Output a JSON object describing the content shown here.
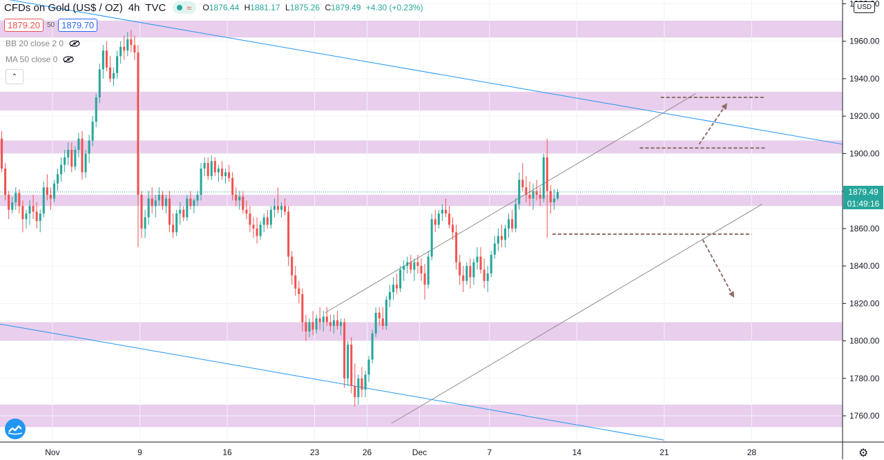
{
  "header": {
    "title": "CFDs on Gold (US$ / OZ)",
    "interval": "4h",
    "source": "TVC",
    "status_glyph": "≈",
    "ohlc": {
      "o": "1876.44",
      "h": "1881.17",
      "l": "1875.26",
      "c": "1879.49",
      "change": "+4.30 (+0.23%)"
    },
    "ohlc_keys": {
      "o": "O",
      "h": "H",
      "l": "L",
      "c": "C"
    }
  },
  "trade": {
    "sell": "1879.20",
    "spread": "50",
    "buy": "1879.70"
  },
  "indicators": [
    {
      "label": "BB 20 close 2 0"
    },
    {
      "label": "MA 50 close 0"
    }
  ],
  "collapse_glyph": "⌃",
  "currency_label": "USD",
  "price_badge": "1879.49",
  "countdown_badge": "01:49:16",
  "colors": {
    "up": "#26a69a",
    "down": "#ef5350",
    "zone": "#e1bee7",
    "trend": "#2196f3",
    "channel": "#8d8d8d",
    "target": "#8d6e63",
    "axis_text": "#131722"
  },
  "chart_data": {
    "type": "candlestick",
    "y_axis": {
      "ticks": [
        1760,
        1780,
        1800,
        1820,
        1840,
        1860,
        1880,
        1900,
        1920,
        1940,
        1960,
        1980
      ],
      "tick_labels": [
        "1760.00",
        "1780.00",
        "1800.00",
        "1820.00",
        "1840.00",
        "1860.00",
        "1880.00",
        "1900.00",
        "1920.00",
        "1940.00",
        "1960.00",
        "1980.00"
      ],
      "range": [
        1746,
        1982
      ]
    },
    "x_axis": {
      "range": [
        0,
        241
      ],
      "ticks": [
        {
          "x": 15,
          "label": "Nov"
        },
        {
          "x": 40,
          "label": "9"
        },
        {
          "x": 65,
          "label": "16"
        },
        {
          "x": 90,
          "label": "23"
        },
        {
          "x": 105,
          "label": "26"
        },
        {
          "x": 120,
          "label": "Dec"
        },
        {
          "x": 140,
          "label": "7"
        },
        {
          "x": 165,
          "label": "14"
        },
        {
          "x": 190,
          "label": "21"
        },
        {
          "x": 215,
          "label": "28"
        }
      ]
    },
    "zones": [
      [
        1962,
        1971
      ],
      [
        1923,
        1933
      ],
      [
        1900,
        1907
      ],
      [
        1872,
        1878
      ],
      [
        1800,
        1810
      ],
      [
        1754,
        1766
      ]
    ],
    "descending_lines": [
      [
        [
          0,
          1983
        ],
        [
          241,
          1905
        ]
      ],
      [
        [
          0,
          1809
        ],
        [
          190,
          1747
        ]
      ]
    ],
    "channel_lines": [
      [
        [
          93,
          1815
        ],
        [
          199,
          1932
        ]
      ],
      [
        [
          112,
          1756
        ],
        [
          218,
          1873
        ]
      ]
    ],
    "target_levels": [
      [
        [
          158,
          1857
        ],
        [
          215,
          1857
        ]
      ],
      [
        [
          183,
          1903
        ],
        [
          219,
          1903
        ]
      ],
      [
        [
          189,
          1930
        ],
        [
          219,
          1930
        ]
      ]
    ],
    "target_arrows": [
      [
        [
          200,
          1905
        ],
        [
          208,
          1927
        ]
      ],
      [
        [
          201,
          1854
        ],
        [
          210,
          1823
        ]
      ]
    ],
    "last_price_line": 1879.49,
    "candles": [
      [
        1908,
        1912,
        1890,
        1892
      ],
      [
        1892,
        1895,
        1875,
        1878
      ],
      [
        1878,
        1880,
        1865,
        1870
      ],
      [
        1870,
        1877,
        1868,
        1874
      ],
      [
        1874,
        1882,
        1870,
        1879
      ],
      [
        1879,
        1881,
        1868,
        1872
      ],
      [
        1872,
        1875,
        1858,
        1865
      ],
      [
        1865,
        1870,
        1860,
        1868
      ],
      [
        1868,
        1875,
        1862,
        1872
      ],
      [
        1872,
        1878,
        1865,
        1869
      ],
      [
        1869,
        1874,
        1860,
        1864
      ],
      [
        1864,
        1870,
        1858,
        1868
      ],
      [
        1868,
        1885,
        1866,
        1882
      ],
      [
        1882,
        1889,
        1875,
        1878
      ],
      [
        1878,
        1882,
        1870,
        1876
      ],
      [
        1876,
        1886,
        1874,
        1884
      ],
      [
        1884,
        1892,
        1880,
        1889
      ],
      [
        1889,
        1898,
        1885,
        1894
      ],
      [
        1894,
        1902,
        1890,
        1898
      ],
      [
        1898,
        1906,
        1894,
        1902
      ],
      [
        1902,
        1906,
        1890,
        1893
      ],
      [
        1893,
        1904,
        1891,
        1902
      ],
      [
        1902,
        1911,
        1898,
        1908
      ],
      [
        1908,
        1912,
        1886,
        1890
      ],
      [
        1890,
        1902,
        1887,
        1900
      ],
      [
        1900,
        1910,
        1895,
        1907
      ],
      [
        1907,
        1920,
        1904,
        1917
      ],
      [
        1917,
        1932,
        1914,
        1930
      ],
      [
        1930,
        1948,
        1927,
        1945
      ],
      [
        1945,
        1958,
        1940,
        1955
      ],
      [
        1955,
        1960,
        1944,
        1946
      ],
      [
        1946,
        1952,
        1938,
        1940
      ],
      [
        1940,
        1946,
        1936,
        1943
      ],
      [
        1943,
        1955,
        1940,
        1952
      ],
      [
        1952,
        1960,
        1948,
        1957
      ],
      [
        1957,
        1963,
        1950,
        1955
      ],
      [
        1955,
        1965,
        1952,
        1961
      ],
      [
        1961,
        1966,
        1954,
        1958
      ],
      [
        1958,
        1963,
        1950,
        1954
      ],
      [
        1954,
        1958,
        1850,
        1878
      ],
      [
        1878,
        1880,
        1855,
        1860
      ],
      [
        1860,
        1870,
        1855,
        1866
      ],
      [
        1866,
        1880,
        1862,
        1876
      ],
      [
        1876,
        1882,
        1868,
        1872
      ],
      [
        1872,
        1878,
        1866,
        1875
      ],
      [
        1875,
        1882,
        1872,
        1878
      ],
      [
        1878,
        1880,
        1870,
        1872
      ],
      [
        1872,
        1878,
        1868,
        1876
      ],
      [
        1876,
        1880,
        1858,
        1862
      ],
      [
        1862,
        1868,
        1855,
        1858
      ],
      [
        1858,
        1870,
        1856,
        1868
      ],
      [
        1868,
        1874,
        1862,
        1870
      ],
      [
        1870,
        1872,
        1864,
        1866
      ],
      [
        1866,
        1878,
        1864,
        1876
      ],
      [
        1876,
        1880,
        1870,
        1872
      ],
      [
        1872,
        1876,
        1868,
        1875
      ],
      [
        1875,
        1880,
        1872,
        1878
      ],
      [
        1878,
        1895,
        1875,
        1892
      ],
      [
        1892,
        1898,
        1888,
        1895
      ],
      [
        1895,
        1898,
        1886,
        1888
      ],
      [
        1888,
        1899,
        1886,
        1896
      ],
      [
        1896,
        1898,
        1888,
        1890
      ],
      [
        1890,
        1894,
        1885,
        1892
      ],
      [
        1892,
        1896,
        1886,
        1888
      ],
      [
        1888,
        1892,
        1884,
        1890
      ],
      [
        1890,
        1894,
        1885,
        1887
      ],
      [
        1887,
        1890,
        1875,
        1878
      ],
      [
        1878,
        1882,
        1872,
        1875
      ],
      [
        1875,
        1880,
        1870,
        1877
      ],
      [
        1877,
        1880,
        1868,
        1870
      ],
      [
        1870,
        1875,
        1865,
        1868
      ],
      [
        1868,
        1872,
        1858,
        1862
      ],
      [
        1862,
        1866,
        1855,
        1860
      ],
      [
        1860,
        1866,
        1852,
        1856
      ],
      [
        1856,
        1864,
        1854,
        1862
      ],
      [
        1862,
        1868,
        1858,
        1866
      ],
      [
        1866,
        1870,
        1860,
        1862
      ],
      [
        1862,
        1872,
        1860,
        1870
      ],
      [
        1870,
        1876,
        1866,
        1872
      ],
      [
        1872,
        1882,
        1868,
        1870
      ],
      [
        1870,
        1874,
        1866,
        1872
      ],
      [
        1872,
        1876,
        1867,
        1869
      ],
      [
        1869,
        1872,
        1840,
        1845
      ],
      [
        1845,
        1848,
        1830,
        1835
      ],
      [
        1835,
        1840,
        1824,
        1828
      ],
      [
        1828,
        1832,
        1820,
        1825
      ],
      [
        1825,
        1828,
        1805,
        1810
      ],
      [
        1810,
        1814,
        1800,
        1805
      ],
      [
        1805,
        1812,
        1802,
        1810
      ],
      [
        1810,
        1816,
        1803,
        1806
      ],
      [
        1806,
        1814,
        1804,
        1812
      ],
      [
        1812,
        1818,
        1806,
        1810
      ],
      [
        1810,
        1816,
        1805,
        1813
      ],
      [
        1813,
        1818,
        1808,
        1810
      ],
      [
        1810,
        1814,
        1805,
        1808
      ],
      [
        1808,
        1814,
        1804,
        1811
      ],
      [
        1811,
        1816,
        1806,
        1808
      ],
      [
        1808,
        1812,
        1803,
        1810
      ],
      [
        1810,
        1812,
        1775,
        1780
      ],
      [
        1780,
        1800,
        1776,
        1798
      ],
      [
        1798,
        1802,
        1772,
        1776
      ],
      [
        1776,
        1788,
        1765,
        1770
      ],
      [
        1770,
        1782,
        1766,
        1780
      ],
      [
        1780,
        1786,
        1770,
        1774
      ],
      [
        1774,
        1784,
        1770,
        1782
      ],
      [
        1782,
        1792,
        1778,
        1790
      ],
      [
        1790,
        1806,
        1788,
        1804
      ],
      [
        1804,
        1818,
        1802,
        1815
      ],
      [
        1815,
        1818,
        1808,
        1812
      ],
      [
        1812,
        1818,
        1806,
        1808
      ],
      [
        1808,
        1824,
        1806,
        1822
      ],
      [
        1822,
        1830,
        1818,
        1826
      ],
      [
        1826,
        1834,
        1822,
        1830
      ],
      [
        1830,
        1836,
        1825,
        1828
      ],
      [
        1828,
        1840,
        1826,
        1838
      ],
      [
        1838,
        1843,
        1832,
        1840
      ],
      [
        1840,
        1845,
        1836,
        1842
      ],
      [
        1842,
        1846,
        1836,
        1838
      ],
      [
        1838,
        1844,
        1832,
        1842
      ],
      [
        1842,
        1846,
        1836,
        1840
      ],
      [
        1840,
        1844,
        1832,
        1836
      ],
      [
        1836,
        1841,
        1822,
        1830
      ],
      [
        1830,
        1848,
        1828,
        1845
      ],
      [
        1845,
        1868,
        1843,
        1865
      ],
      [
        1865,
        1870,
        1858,
        1862
      ],
      [
        1862,
        1870,
        1860,
        1868
      ],
      [
        1868,
        1873,
        1864,
        1870
      ],
      [
        1870,
        1876,
        1866,
        1868
      ],
      [
        1868,
        1872,
        1860,
        1862
      ],
      [
        1862,
        1866,
        1854,
        1858
      ],
      [
        1858,
        1862,
        1838,
        1842
      ],
      [
        1842,
        1846,
        1830,
        1835
      ],
      [
        1835,
        1840,
        1826,
        1832
      ],
      [
        1832,
        1842,
        1830,
        1840
      ],
      [
        1840,
        1844,
        1828,
        1834
      ],
      [
        1834,
        1844,
        1830,
        1842
      ],
      [
        1842,
        1850,
        1838,
        1845
      ],
      [
        1845,
        1850,
        1836,
        1838
      ],
      [
        1838,
        1844,
        1828,
        1832
      ],
      [
        1832,
        1840,
        1826,
        1836
      ],
      [
        1836,
        1848,
        1834,
        1846
      ],
      [
        1846,
        1856,
        1844,
        1852
      ],
      [
        1852,
        1860,
        1848,
        1856
      ],
      [
        1856,
        1862,
        1850,
        1854
      ],
      [
        1854,
        1862,
        1850,
        1860
      ],
      [
        1860,
        1868,
        1855,
        1865
      ],
      [
        1865,
        1870,
        1858,
        1860
      ],
      [
        1860,
        1876,
        1858,
        1873
      ],
      [
        1873,
        1890,
        1870,
        1886
      ],
      [
        1886,
        1895,
        1880,
        1882
      ],
      [
        1882,
        1888,
        1874,
        1878
      ],
      [
        1878,
        1885,
        1872,
        1876
      ],
      [
        1876,
        1884,
        1870,
        1880
      ],
      [
        1880,
        1886,
        1875,
        1878
      ],
      [
        1878,
        1882,
        1872,
        1876
      ],
      [
        1876,
        1900,
        1874,
        1898
      ],
      [
        1898,
        1908,
        1855,
        1880
      ],
      [
        1880,
        1883,
        1868,
        1874
      ],
      [
        1874,
        1881,
        1870,
        1876
      ],
      [
        1876,
        1881,
        1875,
        1879.49
      ]
    ]
  }
}
